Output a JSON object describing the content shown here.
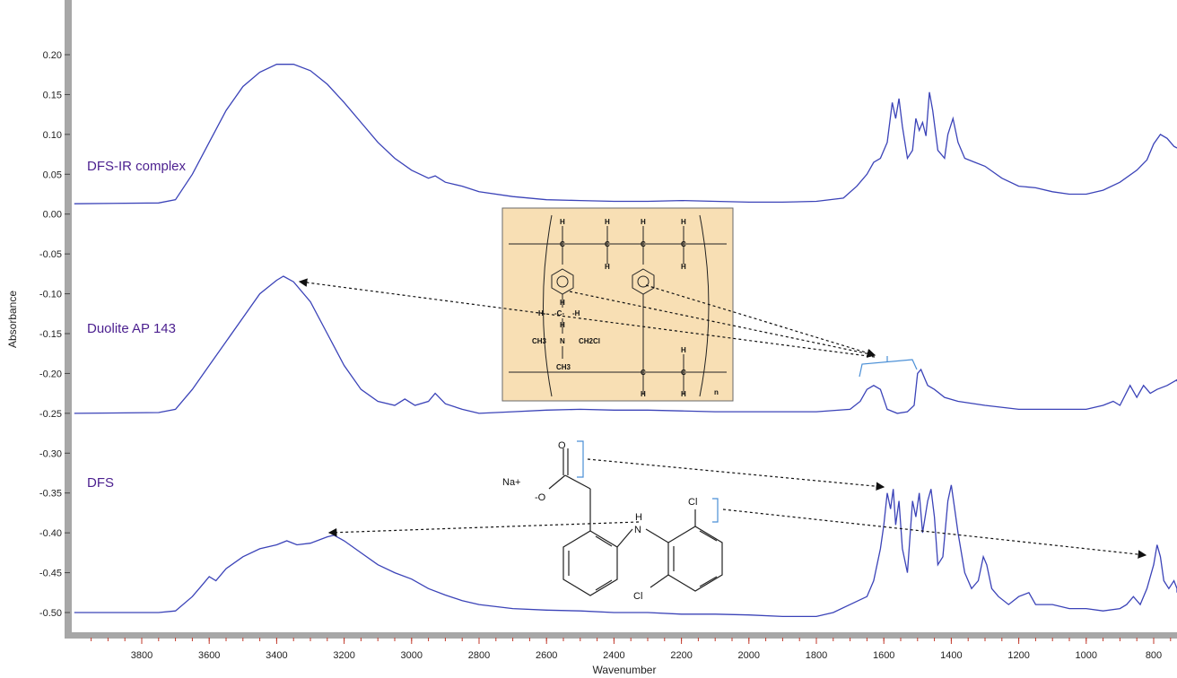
{
  "chart_data": {
    "type": "line",
    "title": "",
    "xlabel": "Wavenumber",
    "ylabel": "Absorbance",
    "xlim": [
      4000,
      700
    ],
    "ylim": [
      -0.53,
      0.23
    ],
    "x_reversed": true,
    "grid": false,
    "x_ticks": [
      "3800",
      "3600",
      "3400",
      "3200",
      "3000",
      "2800",
      "2600",
      "2400",
      "2200",
      "2000",
      "1800",
      "1600",
      "1400",
      "1200",
      "1000",
      "800"
    ],
    "y_ticks": [
      "0.20",
      "0.15",
      "0.10",
      "0.05",
      "0.00",
      "-0.05",
      "-0.10",
      "-0.15",
      "-0.20",
      "-0.25",
      "-0.30",
      "-0.35",
      "-0.40",
      "-0.45",
      "-0.50"
    ],
    "line_color": "#3b43b8",
    "series": [
      {
        "name": "DFS-IR complex",
        "points": [
          [
            4000,
            0.013
          ],
          [
            3750,
            0.014
          ],
          [
            3700,
            0.018
          ],
          [
            3650,
            0.05
          ],
          [
            3600,
            0.09
          ],
          [
            3550,
            0.13
          ],
          [
            3500,
            0.16
          ],
          [
            3450,
            0.178
          ],
          [
            3400,
            0.188
          ],
          [
            3350,
            0.188
          ],
          [
            3300,
            0.18
          ],
          [
            3250,
            0.163
          ],
          [
            3200,
            0.14
          ],
          [
            3150,
            0.115
          ],
          [
            3100,
            0.09
          ],
          [
            3050,
            0.07
          ],
          [
            3000,
            0.055
          ],
          [
            2950,
            0.045
          ],
          [
            2930,
            0.048
          ],
          [
            2900,
            0.04
          ],
          [
            2850,
            0.035
          ],
          [
            2800,
            0.028
          ],
          [
            2700,
            0.022
          ],
          [
            2600,
            0.018
          ],
          [
            2500,
            0.017
          ],
          [
            2400,
            0.016
          ],
          [
            2300,
            0.016
          ],
          [
            2200,
            0.017
          ],
          [
            2100,
            0.016
          ],
          [
            2000,
            0.015
          ],
          [
            1900,
            0.015
          ],
          [
            1800,
            0.016
          ],
          [
            1720,
            0.02
          ],
          [
            1680,
            0.035
          ],
          [
            1650,
            0.05
          ],
          [
            1630,
            0.065
          ],
          [
            1610,
            0.07
          ],
          [
            1590,
            0.09
          ],
          [
            1575,
            0.14
          ],
          [
            1565,
            0.12
          ],
          [
            1555,
            0.145
          ],
          [
            1545,
            0.11
          ],
          [
            1530,
            0.07
          ],
          [
            1515,
            0.08
          ],
          [
            1505,
            0.12
          ],
          [
            1495,
            0.105
          ],
          [
            1485,
            0.115
          ],
          [
            1475,
            0.098
          ],
          [
            1465,
            0.153
          ],
          [
            1455,
            0.13
          ],
          [
            1440,
            0.08
          ],
          [
            1420,
            0.07
          ],
          [
            1410,
            0.1
          ],
          [
            1395,
            0.12
          ],
          [
            1380,
            0.09
          ],
          [
            1360,
            0.07
          ],
          [
            1330,
            0.065
          ],
          [
            1300,
            0.06
          ],
          [
            1250,
            0.045
          ],
          [
            1200,
            0.035
          ],
          [
            1150,
            0.033
          ],
          [
            1100,
            0.028
          ],
          [
            1050,
            0.025
          ],
          [
            1000,
            0.025
          ],
          [
            950,
            0.03
          ],
          [
            900,
            0.04
          ],
          [
            850,
            0.055
          ],
          [
            820,
            0.068
          ],
          [
            800,
            0.088
          ],
          [
            780,
            0.1
          ],
          [
            760,
            0.095
          ],
          [
            740,
            0.085
          ],
          [
            710,
            0.083
          ]
        ]
      },
      {
        "name": "Duolite AP 143",
        "points": [
          [
            4000,
            -0.25
          ],
          [
            3750,
            -0.249
          ],
          [
            3700,
            -0.245
          ],
          [
            3650,
            -0.22
          ],
          [
            3600,
            -0.19
          ],
          [
            3550,
            -0.16
          ],
          [
            3500,
            -0.13
          ],
          [
            3450,
            -0.1
          ],
          [
            3400,
            -0.083
          ],
          [
            3380,
            -0.078
          ],
          [
            3350,
            -0.085
          ],
          [
            3300,
            -0.11
          ],
          [
            3250,
            -0.15
          ],
          [
            3200,
            -0.19
          ],
          [
            3150,
            -0.22
          ],
          [
            3100,
            -0.235
          ],
          [
            3050,
            -0.24
          ],
          [
            3020,
            -0.232
          ],
          [
            2990,
            -0.24
          ],
          [
            2950,
            -0.235
          ],
          [
            2930,
            -0.225
          ],
          [
            2900,
            -0.238
          ],
          [
            2850,
            -0.245
          ],
          [
            2800,
            -0.25
          ],
          [
            2700,
            -0.248
          ],
          [
            2600,
            -0.246
          ],
          [
            2500,
            -0.245
          ],
          [
            2400,
            -0.246
          ],
          [
            2300,
            -0.246
          ],
          [
            2200,
            -0.247
          ],
          [
            2100,
            -0.248
          ],
          [
            2000,
            -0.248
          ],
          [
            1900,
            -0.248
          ],
          [
            1800,
            -0.248
          ],
          [
            1700,
            -0.245
          ],
          [
            1670,
            -0.235
          ],
          [
            1650,
            -0.22
          ],
          [
            1630,
            -0.215
          ],
          [
            1610,
            -0.22
          ],
          [
            1590,
            -0.245
          ],
          [
            1560,
            -0.25
          ],
          [
            1530,
            -0.248
          ],
          [
            1510,
            -0.24
          ],
          [
            1500,
            -0.2
          ],
          [
            1490,
            -0.195
          ],
          [
            1480,
            -0.205
          ],
          [
            1470,
            -0.215
          ],
          [
            1450,
            -0.22
          ],
          [
            1420,
            -0.23
          ],
          [
            1380,
            -0.235
          ],
          [
            1300,
            -0.24
          ],
          [
            1200,
            -0.245
          ],
          [
            1100,
            -0.245
          ],
          [
            1000,
            -0.245
          ],
          [
            950,
            -0.24
          ],
          [
            920,
            -0.235
          ],
          [
            900,
            -0.24
          ],
          [
            870,
            -0.215
          ],
          [
            850,
            -0.23
          ],
          [
            830,
            -0.215
          ],
          [
            810,
            -0.225
          ],
          [
            790,
            -0.22
          ],
          [
            760,
            -0.215
          ],
          [
            730,
            -0.208
          ],
          [
            710,
            -0.21
          ]
        ]
      },
      {
        "name": "DFS",
        "points": [
          [
            4000,
            -0.5
          ],
          [
            3750,
            -0.5
          ],
          [
            3700,
            -0.498
          ],
          [
            3650,
            -0.48
          ],
          [
            3620,
            -0.465
          ],
          [
            3600,
            -0.455
          ],
          [
            3580,
            -0.46
          ],
          [
            3550,
            -0.445
          ],
          [
            3500,
            -0.43
          ],
          [
            3450,
            -0.42
          ],
          [
            3400,
            -0.415
          ],
          [
            3370,
            -0.41
          ],
          [
            3340,
            -0.415
          ],
          [
            3300,
            -0.413
          ],
          [
            3250,
            -0.405
          ],
          [
            3230,
            -0.403
          ],
          [
            3200,
            -0.41
          ],
          [
            3150,
            -0.425
          ],
          [
            3100,
            -0.44
          ],
          [
            3050,
            -0.45
          ],
          [
            3000,
            -0.458
          ],
          [
            2950,
            -0.47
          ],
          [
            2900,
            -0.478
          ],
          [
            2850,
            -0.485
          ],
          [
            2800,
            -0.49
          ],
          [
            2700,
            -0.495
          ],
          [
            2600,
            -0.497
          ],
          [
            2500,
            -0.498
          ],
          [
            2400,
            -0.5
          ],
          [
            2300,
            -0.5
          ],
          [
            2200,
            -0.502
          ],
          [
            2100,
            -0.502
          ],
          [
            2000,
            -0.503
          ],
          [
            1900,
            -0.505
          ],
          [
            1800,
            -0.505
          ],
          [
            1750,
            -0.5
          ],
          [
            1700,
            -0.49
          ],
          [
            1650,
            -0.48
          ],
          [
            1630,
            -0.46
          ],
          [
            1610,
            -0.42
          ],
          [
            1600,
            -0.39
          ],
          [
            1590,
            -0.35
          ],
          [
            1580,
            -0.37
          ],
          [
            1572,
            -0.345
          ],
          [
            1565,
            -0.39
          ],
          [
            1555,
            -0.36
          ],
          [
            1545,
            -0.42
          ],
          [
            1530,
            -0.45
          ],
          [
            1515,
            -0.36
          ],
          [
            1505,
            -0.38
          ],
          [
            1495,
            -0.35
          ],
          [
            1485,
            -0.4
          ],
          [
            1470,
            -0.36
          ],
          [
            1460,
            -0.345
          ],
          [
            1450,
            -0.38
          ],
          [
            1440,
            -0.44
          ],
          [
            1425,
            -0.43
          ],
          [
            1410,
            -0.36
          ],
          [
            1400,
            -0.34
          ],
          [
            1390,
            -0.37
          ],
          [
            1380,
            -0.4
          ],
          [
            1360,
            -0.45
          ],
          [
            1340,
            -0.47
          ],
          [
            1320,
            -0.46
          ],
          [
            1305,
            -0.43
          ],
          [
            1295,
            -0.44
          ],
          [
            1280,
            -0.47
          ],
          [
            1260,
            -0.48
          ],
          [
            1230,
            -0.49
          ],
          [
            1200,
            -0.48
          ],
          [
            1170,
            -0.475
          ],
          [
            1150,
            -0.49
          ],
          [
            1100,
            -0.49
          ],
          [
            1050,
            -0.495
          ],
          [
            1000,
            -0.495
          ],
          [
            950,
            -0.498
          ],
          [
            900,
            -0.495
          ],
          [
            880,
            -0.49
          ],
          [
            860,
            -0.48
          ],
          [
            840,
            -0.49
          ],
          [
            820,
            -0.47
          ],
          [
            800,
            -0.44
          ],
          [
            790,
            -0.415
          ],
          [
            780,
            -0.43
          ],
          [
            770,
            -0.46
          ],
          [
            755,
            -0.47
          ],
          [
            740,
            -0.46
          ],
          [
            720,
            -0.47
          ],
          [
            710,
            -0.475
          ]
        ]
      }
    ]
  },
  "structures": {
    "resin": {
      "labels": [
        "H",
        "H",
        "H",
        "H",
        "C",
        "C",
        "C",
        "C",
        "H",
        "H",
        "H-",
        "-C-",
        "-H",
        "H",
        "H",
        "CH3",
        "N",
        "CH2Cl",
        "CH3",
        "C",
        "C",
        "H",
        "H",
        "H",
        "n"
      ]
    },
    "dfs": {
      "labels": [
        "O",
        "Na+",
        "-O",
        "H",
        "N",
        "Cl",
        "Cl"
      ]
    }
  }
}
